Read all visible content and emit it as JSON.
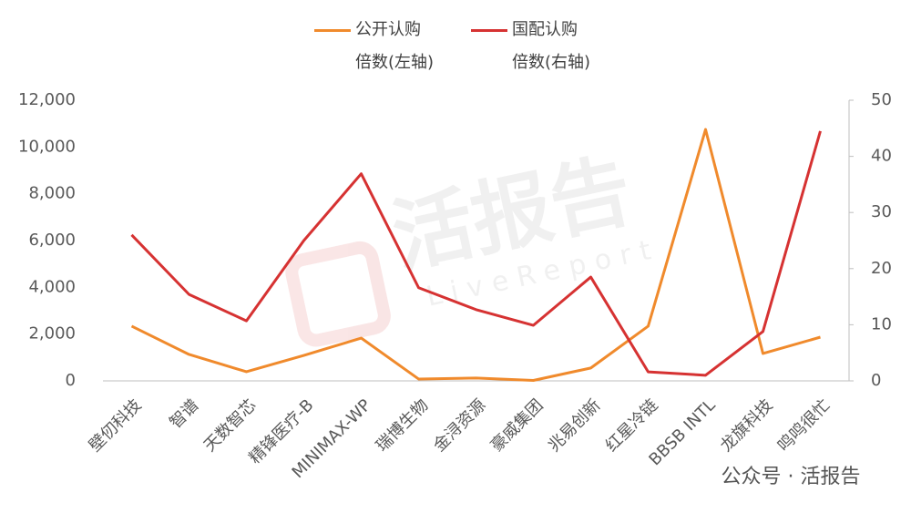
{
  "chart_data": {
    "type": "line",
    "categories": [
      "壁仞科技",
      "智谱",
      "天数智芯",
      "精锋医疗-B",
      "MINIMAX-WP",
      "瑞博生物",
      "金浔资源",
      "豪威集团",
      "兆易创新",
      "红星冷链",
      "BBSB INTL",
      "龙旗科技",
      "鸣鸣很忙"
    ],
    "series": [
      {
        "name": "公开认购\n倍数(左轴)",
        "color": "#f08a2c",
        "values": [
          2340,
          1130,
          390,
          1090,
          1830,
          80,
          120,
          20,
          550,
          2340,
          10750,
          1170,
          1870
        ]
      },
      {
        "name": "国配认购\n倍数(右轴)",
        "color": "#d63232",
        "axis": "y2",
        "values": [
          26,
          15.4,
          10.7,
          25,
          36.9,
          16.6,
          12.7,
          9.9,
          18.5,
          1.6,
          1.0,
          8.8,
          44.5
        ]
      }
    ],
    "ylim": [
      0,
      12000
    ],
    "yticks": [
      0,
      {
        "value": 2000,
        "label": "2,000"
      },
      {
        "value": 4000,
        "label": "4,000"
      },
      {
        "value": 6000,
        "label": "6,000"
      },
      {
        "value": 8000,
        "label": "8,000"
      },
      {
        "value": 10000,
        "label": "10,000"
      },
      {
        "value": 12000,
        "label": "12,000"
      }
    ],
    "y2lim": [
      0,
      50
    ],
    "y2ticks": [
      0,
      10,
      20,
      30,
      40,
      50
    ],
    "grid": false,
    "legend": "top",
    "watermark": "活报告",
    "watermark_sub": "LiveReport",
    "footer": "公众号 · 活报告"
  }
}
